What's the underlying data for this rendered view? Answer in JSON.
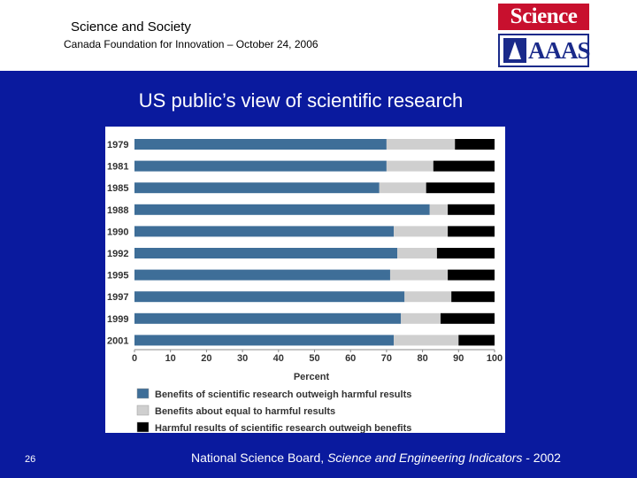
{
  "header": {
    "title": "Science and Society",
    "subtitle": "Canada Foundation for Innovation – October 24, 2006",
    "logo_science": "Science",
    "logo_aaas": "AAAS"
  },
  "slide_title": "US public’s view of scientific research",
  "page_number": "26",
  "footer": {
    "prefix": "National Science Board, ",
    "italic": "Science and Engineering Indicators",
    "suffix": " - 2002"
  },
  "colors": {
    "background": "#0a1a9e",
    "benefits": "#3e6e98",
    "equal": "#cfcfcf",
    "harmful": "#000000"
  },
  "chart_data": {
    "type": "bar",
    "orientation": "horizontal",
    "stacked": true,
    "categories": [
      "1979",
      "1981",
      "1985",
      "1988",
      "1990",
      "1992",
      "1995",
      "1997",
      "1999",
      "2001"
    ],
    "series": [
      {
        "name": "Benefits of scientific research outweigh harmful results",
        "values": [
          70,
          70,
          68,
          82,
          72,
          73,
          71,
          75,
          74,
          72
        ]
      },
      {
        "name": "Benefits about equal to harmful results",
        "values": [
          19,
          13,
          13,
          5,
          15,
          11,
          16,
          13,
          11,
          18
        ]
      },
      {
        "name": "Harmful results of scientific research outweigh benefits",
        "values": [
          11,
          17,
          19,
          13,
          13,
          16,
          13,
          12,
          15,
          10
        ]
      }
    ],
    "xlabel": "Percent",
    "xlim": [
      0,
      100
    ],
    "xticks": [
      "0",
      "10",
      "20",
      "30",
      "40",
      "50",
      "60",
      "70",
      "80",
      "90",
      "100"
    ],
    "legend_position": "bottom",
    "grid": false
  }
}
